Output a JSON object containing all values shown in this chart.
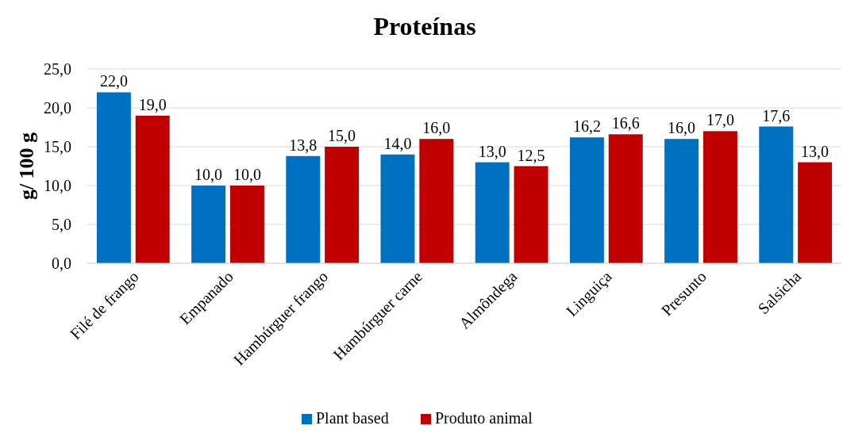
{
  "chart_data": {
    "type": "bar",
    "title": "Proteínas",
    "ylabel": "g/ 100 g",
    "categories": [
      "Filé de frango",
      "Empanado",
      "Hambúrguer frango",
      "Hambúrguer carne",
      "Almôndega",
      "Linguiça",
      "Presunto",
      "Salsicha"
    ],
    "series": [
      {
        "name": "Plant based",
        "color": "#0070c0",
        "values": [
          22.0,
          10.0,
          13.8,
          14.0,
          13.0,
          16.2,
          16.0,
          17.6
        ],
        "value_labels": [
          "22,0",
          "10,0",
          "13,8",
          "14,0",
          "13,0",
          "16,2",
          "16,0",
          "17,6"
        ]
      },
      {
        "name": "Produto animal",
        "color": "#c00000",
        "values": [
          19.0,
          10.0,
          15.0,
          16.0,
          12.5,
          16.6,
          17.0,
          13.0
        ],
        "value_labels": [
          "19,0",
          "10,0",
          "15,0",
          "16,0",
          "12,5",
          "16,6",
          "17,0",
          "13,0"
        ]
      }
    ],
    "ylim": [
      0,
      25
    ],
    "yticks": [
      {
        "value": 0,
        "label": "0,0"
      },
      {
        "value": 5,
        "label": "5,0"
      },
      {
        "value": 10,
        "label": "10,0"
      },
      {
        "value": 15,
        "label": "15,0"
      },
      {
        "value": 20,
        "label": "20,0"
      },
      {
        "value": 25,
        "label": "25,0"
      }
    ],
    "grid": "y",
    "legend": "bottom"
  }
}
